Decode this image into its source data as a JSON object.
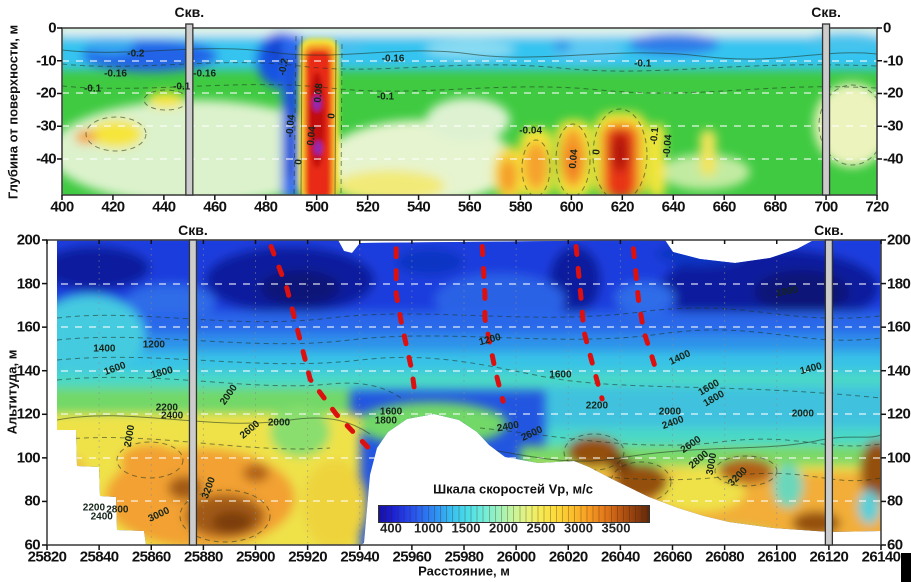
{
  "chart_data": [
    {
      "type": "heatmap",
      "panel": "upper-anomaly-section",
      "y_axis_title": "Глубина от поверхности, м",
      "x_range": [
        400,
        720
      ],
      "y_range": [
        0,
        -50
      ],
      "x_ticks": [
        400,
        420,
        440,
        460,
        480,
        500,
        520,
        540,
        560,
        580,
        600,
        620,
        640,
        660,
        680,
        700,
        720
      ],
      "y_ticks": [
        0,
        -10,
        -20,
        -30,
        -40
      ],
      "wells": {
        "label": "Скв.",
        "x": [
          450,
          700
        ]
      },
      "contour_labels": [
        {
          "t": "-0.2",
          "x": 429,
          "d": -8
        },
        {
          "t": "-0.16",
          "x": 421,
          "d": -14
        },
        {
          "t": "-0.1",
          "x": 412,
          "d": -18.5
        },
        {
          "t": "-0.16",
          "x": 456,
          "d": -14
        },
        {
          "t": "-0.1",
          "x": 447,
          "d": -18
        },
        {
          "t": "-0.2",
          "x": 487,
          "d": -12,
          "r": -80
        },
        {
          "t": "-0.16",
          "x": 530,
          "d": -9.5
        },
        {
          "t": "-0.1",
          "x": 527,
          "d": -21
        },
        {
          "t": "-0.04",
          "x": 584,
          "d": -31.5
        },
        {
          "t": "-0.1",
          "x": 628,
          "d": -11
        },
        {
          "t": "-0.04",
          "x": 638,
          "d": -36,
          "r": -85
        },
        {
          "t": "-0.1",
          "x": 633,
          "d": -33,
          "r": -85
        },
        {
          "t": "0",
          "x": 506,
          "d": -27,
          "r": -85
        },
        {
          "t": "0.08",
          "x": 501,
          "d": -20,
          "r": -85
        },
        {
          "t": "0.04",
          "x": 498,
          "d": -33,
          "r": -85
        },
        {
          "t": "0",
          "x": 493,
          "d": -41,
          "r": -85
        },
        {
          "t": "-0.04",
          "x": 490,
          "d": -30,
          "r": -85
        },
        {
          "t": "0",
          "x": 610,
          "d": -38,
          "r": -85
        },
        {
          "t": "0.04",
          "x": 601,
          "d": -40,
          "r": -85
        }
      ]
    },
    {
      "type": "heatmap",
      "panel": "lower-velocity-section",
      "y_axis_title": "Альтитуда, м",
      "x_axis_title": "Расстояние, м",
      "x_range": [
        25820,
        26140
      ],
      "y_range": [
        60,
        200
      ],
      "x_ticks": [
        25820,
        25840,
        25860,
        25880,
        25900,
        25920,
        25940,
        25960,
        25980,
        26000,
        26020,
        26040,
        26060,
        26080,
        26100,
        26120,
        26140
      ],
      "y_ticks": [
        200,
        180,
        160,
        140,
        120,
        100,
        80,
        60
      ],
      "wells": {
        "label": "Скв.",
        "x": [
          25876,
          26120
        ]
      },
      "colorbar": {
        "title": "Шкала скоростей Vp, м/с",
        "tick_labels": [
          400,
          1000,
          1500,
          2000,
          2500,
          3000,
          3500
        ],
        "colors": [
          "#1512a8",
          "#2a64f0",
          "#38c0f0",
          "#72ecd8",
          "#f6ea52",
          "#f59a22",
          "#63290a"
        ]
      },
      "faults": [
        [
          [
            25906,
            197
          ],
          [
            25912,
            178
          ],
          [
            25921,
            136
          ],
          [
            25931,
            120
          ],
          [
            25943,
            105
          ]
        ],
        [
          [
            25954,
            196
          ],
          [
            25954,
            175
          ],
          [
            25956,
            162
          ],
          [
            25960,
            140
          ],
          [
            25961,
            131
          ]
        ],
        [
          [
            25987,
            197
          ],
          [
            25988,
            175
          ],
          [
            25988,
            164
          ],
          [
            25992,
            140
          ],
          [
            25995,
            126
          ]
        ],
        [
          [
            26023,
            197
          ],
          [
            26025,
            172
          ],
          [
            26026,
            158
          ],
          [
            26030,
            140
          ],
          [
            26033,
            127
          ]
        ],
        [
          [
            26045,
            196
          ],
          [
            26047,
            172
          ],
          [
            26049,
            158
          ],
          [
            26052,
            147
          ],
          [
            26054,
            139
          ]
        ]
      ],
      "contour_labels": [
        {
          "t": "1200",
          "x": 25861,
          "a": 152
        },
        {
          "t": "1200",
          "x": 25990,
          "a": 154,
          "r": -15
        },
        {
          "t": "1000",
          "x": 26104,
          "a": 176,
          "r": -10
        },
        {
          "t": "1400",
          "x": 25842,
          "a": 150
        },
        {
          "t": "1400",
          "x": 26063,
          "a": 146,
          "r": -25
        },
        {
          "t": "1400",
          "x": 26113,
          "a": 141,
          "r": -15
        },
        {
          "t": "1600",
          "x": 25846,
          "a": 141,
          "r": -20
        },
        {
          "t": "1600",
          "x": 25952,
          "a": 121
        },
        {
          "t": "1600",
          "x": 26017,
          "a": 138
        },
        {
          "t": "1600",
          "x": 26074,
          "a": 132,
          "r": -30
        },
        {
          "t": "1800",
          "x": 25864,
          "a": 139,
          "r": -15
        },
        {
          "t": "1800",
          "x": 25950,
          "a": 117
        },
        {
          "t": "1800",
          "x": 26076,
          "a": 127,
          "r": -30
        },
        {
          "t": "2000",
          "x": 25852,
          "a": 110,
          "r": -80
        },
        {
          "t": "2000",
          "x": 25890,
          "a": 129,
          "r": -55
        },
        {
          "t": "2000",
          "x": 25909,
          "a": 116
        },
        {
          "t": "2000",
          "x": 26059,
          "a": 121
        },
        {
          "t": "2000",
          "x": 26110,
          "a": 120
        },
        {
          "t": "2200",
          "x": 25866,
          "a": 123
        },
        {
          "t": "2200",
          "x": 26031,
          "a": 124
        },
        {
          "t": "2200",
          "x": 25838,
          "a": 77
        },
        {
          "t": "2400",
          "x": 25868,
          "a": 119
        },
        {
          "t": "2400",
          "x": 25841,
          "a": 73
        },
        {
          "t": "2400",
          "x": 25997,
          "a": 114,
          "r": -10
        },
        {
          "t": "2400",
          "x": 26060,
          "a": 116,
          "r": -20
        },
        {
          "t": "2600",
          "x": 25898,
          "a": 113,
          "r": -40
        },
        {
          "t": "2600",
          "x": 26006,
          "a": 111,
          "r": -25
        },
        {
          "t": "2600",
          "x": 26067,
          "a": 106,
          "r": -35
        },
        {
          "t": "2800",
          "x": 25847,
          "a": 76
        },
        {
          "t": "2800",
          "x": 26070,
          "a": 99,
          "r": -40
        },
        {
          "t": "3000",
          "x": 25863,
          "a": 74,
          "r": -25
        },
        {
          "t": "3000",
          "x": 26075,
          "a": 97,
          "r": -80
        },
        {
          "t": "3200",
          "x": 25882,
          "a": 86,
          "r": -70
        },
        {
          "t": "3200",
          "x": 26085,
          "a": 91,
          "r": -45
        }
      ]
    }
  ]
}
